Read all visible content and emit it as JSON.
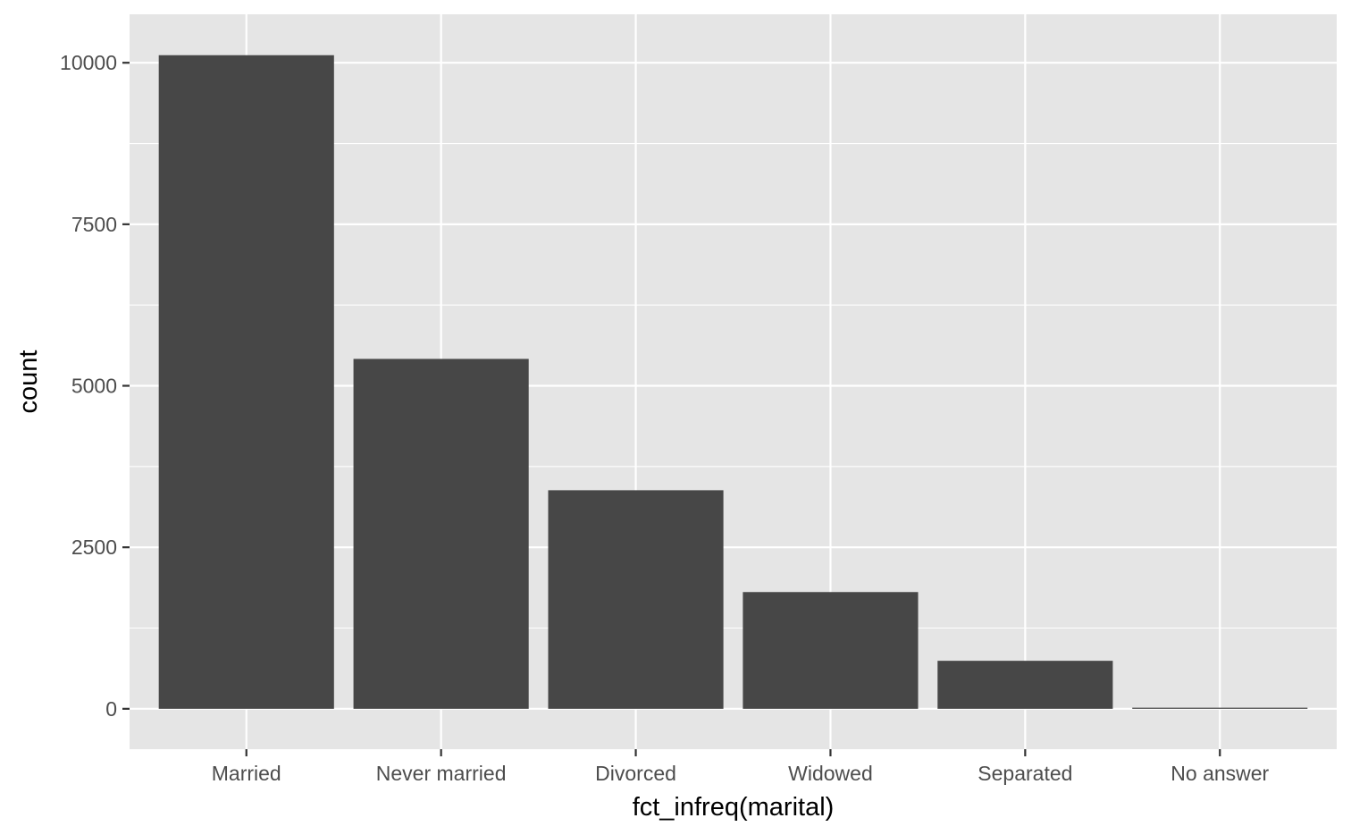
{
  "chart_data": {
    "type": "bar",
    "categories": [
      "Married",
      "Never married",
      "Divorced",
      "Widowed",
      "Separated",
      "No answer"
    ],
    "values": [
      10117,
      5416,
      3383,
      1807,
      743,
      17
    ],
    "xlabel": "fct_infreq(marital)",
    "ylabel": "count",
    "ylim": [
      -625,
      10750
    ],
    "yticks": [
      0,
      2500,
      5000,
      7500,
      10000
    ],
    "ytick_labels": [
      "0",
      "2500",
      "5000",
      "7500",
      "10000"
    ],
    "grid": true,
    "colors": {
      "panel_background": "#e5e5e5",
      "grid_line": "#ffffff",
      "bar_fill": "#474747",
      "tick_mark": "#333333",
      "tick_label": "#4d4d4d",
      "axis_title": "#000000"
    }
  }
}
